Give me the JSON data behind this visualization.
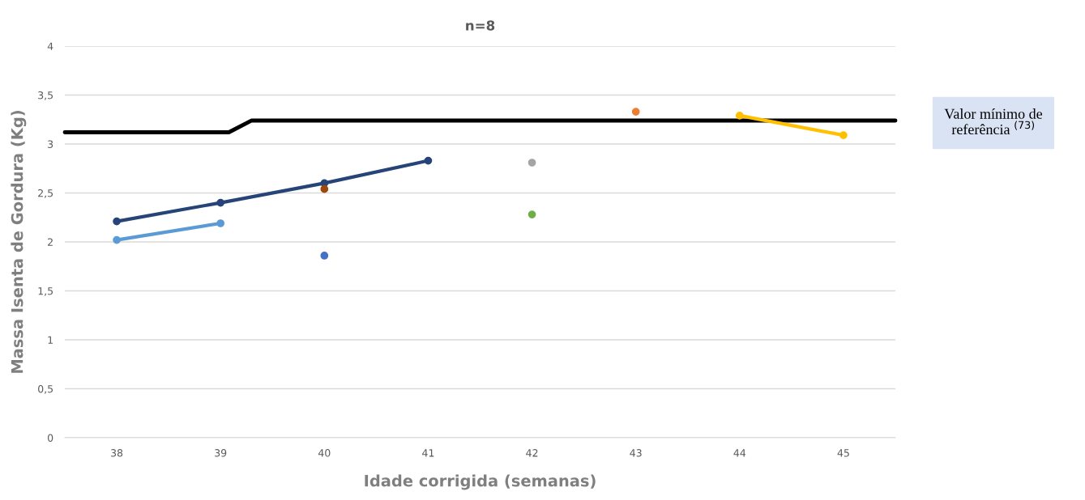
{
  "chart_data": {
    "type": "line",
    "title": "n=8",
    "xlabel": "Idade corrigida (semanas)",
    "ylabel": "Massa Isenta de Gordura (Kg)",
    "xlim": [
      37.5,
      45.5
    ],
    "xticks": [
      38,
      39,
      40,
      41,
      42,
      43,
      44,
      45
    ],
    "ylim": [
      0,
      4
    ],
    "yticks": [
      0,
      {
        "value": 0.5,
        "label": "0,5"
      },
      1,
      {
        "value": 1.5,
        "label": "1,5"
      },
      2,
      {
        "value": 2.5,
        "label": "2,5"
      },
      3,
      {
        "value": 3.5,
        "label": "3,5"
      },
      4
    ],
    "grid": "y",
    "legend": false,
    "marker": "circle",
    "series": [
      {
        "color": "#000000",
        "marker": "none",
        "x": [
          37.5,
          39.08,
          39.3,
          45.5
        ],
        "values": [
          3.12,
          3.12,
          3.24,
          3.24
        ]
      },
      {
        "color": "#264478",
        "x": [
          38,
          39,
          40,
          41
        ],
        "values": [
          2.21,
          2.4,
          2.6,
          2.83
        ]
      },
      {
        "color": "#5b9bd5",
        "x": [
          38,
          39
        ],
        "values": [
          2.02,
          2.19
        ]
      },
      {
        "type": "scatter",
        "color": "#4472c4",
        "x": [
          40
        ],
        "values": [
          1.86
        ]
      },
      {
        "type": "scatter",
        "color": "#9e480e",
        "x": [
          40
        ],
        "values": [
          2.54
        ]
      },
      {
        "type": "scatter",
        "color": "#a5a5a5",
        "x": [
          42
        ],
        "values": [
          2.81
        ]
      },
      {
        "type": "scatter",
        "color": "#70ad47",
        "x": [
          42
        ],
        "values": [
          2.28
        ]
      },
      {
        "type": "scatter",
        "color": "#ed7d31",
        "x": [
          43
        ],
        "values": [
          3.33
        ]
      },
      {
        "color": "#ffc000",
        "x": [
          44,
          45
        ],
        "values": [
          3.29,
          3.09
        ]
      }
    ],
    "annotations": [
      "Valor mínimo de referência $^{(73)}$"
    ]
  }
}
